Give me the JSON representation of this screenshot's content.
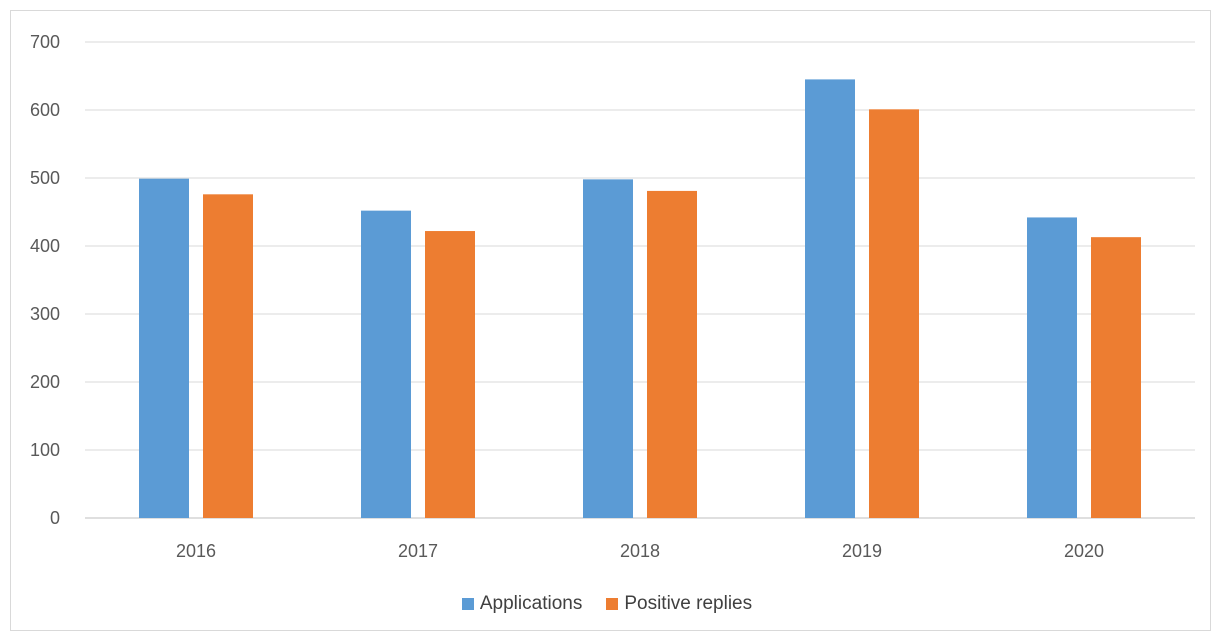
{
  "chart_data": {
    "type": "bar",
    "categories": [
      "2016",
      "2017",
      "2018",
      "2019",
      "2020"
    ],
    "series": [
      {
        "name": "Applications",
        "values": [
          499,
          452,
          498,
          645,
          442
        ],
        "color": "#5b9bd5"
      },
      {
        "name": "Positive replies",
        "values": [
          476,
          422,
          481,
          601,
          413
        ],
        "color": "#ed7d31"
      }
    ],
    "ylim": [
      0,
      700
    ],
    "yticks": [
      0,
      100,
      200,
      300,
      400,
      500,
      600,
      700
    ],
    "grid": true,
    "legend_position": "bottom"
  }
}
